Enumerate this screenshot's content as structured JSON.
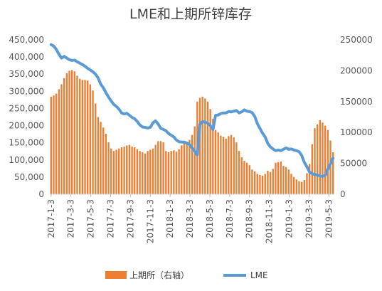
{
  "chart_data": {
    "type": "bar",
    "title": "LME和上期所锌库存",
    "legend": {
      "position": "bottom"
    },
    "grid": false,
    "x_tick_labels": [
      "2017-1-3",
      "2017-3-3",
      "2017-5-3",
      "2017-7-3",
      "2017-9-3",
      "2017-11-3",
      "2018-1-3",
      "2018-3-3",
      "2018-5-3",
      "2018-7-3",
      "2018-9-3",
      "2018-11-3",
      "2019-1-3",
      "2019-3-3",
      "2019-5-3"
    ],
    "y_left": {
      "range": [
        0,
        450000
      ],
      "ticks": [
        "0",
        "50,000",
        "100,000",
        "150,000",
        "200,000",
        "250,000",
        "300,000",
        "350,000",
        "400,000",
        "450,000"
      ]
    },
    "y_right": {
      "range": [
        0,
        250000
      ],
      "ticks": [
        "0",
        "50000",
        "100000",
        "150000",
        "200000",
        "250000"
      ]
    },
    "series": [
      {
        "name": "上期所（右轴）",
        "type": "bar",
        "axis": "right",
        "color": "#ED7D31",
        "values": [
          158000,
          160000,
          163000,
          170000,
          178000,
          188000,
          196000,
          200000,
          201000,
          199000,
          192000,
          187000,
          185000,
          185000,
          184000,
          178000,
          168000,
          147000,
          125000,
          117000,
          108000,
          98000,
          84000,
          74000,
          70000,
          72000,
          74000,
          76000,
          77000,
          79000,
          80000,
          77000,
          76000,
          73000,
          70000,
          68000,
          66000,
          70000,
          72000,
          74000,
          80000,
          86000,
          86000,
          84000,
          70000,
          68000,
          70000,
          71000,
          69000,
          73000,
          79000,
          83000,
          85000,
          88000,
          96000,
          110000,
          150000,
          156000,
          158000,
          155000,
          150000,
          138000,
          122000,
          104000,
          100000,
          95000,
          93000,
          90000,
          94000,
          96000,
          92000,
          84000,
          70000,
          60000,
          54000,
          51000,
          47000,
          40000,
          37000,
          33000,
          31000,
          30000,
          33000,
          38000,
          36000,
          41000,
          51000,
          52000,
          53000,
          46000,
          44000,
          40000,
          33000,
          28000,
          24000,
          21000,
          20000,
          23000,
          34000,
          49000,
          81000,
          107000,
          113000,
          120000,
          116000,
          111000,
          104000,
          87000,
          68000
        ]
      },
      {
        "name": "LME",
        "type": "line",
        "axis": "left",
        "color": "#5B9BD5",
        "values": [
          436000,
          432000,
          422000,
          408000,
          397000,
          402000,
          397000,
          392000,
          390000,
          391000,
          386000,
          382000,
          378000,
          373000,
          367000,
          362000,
          357000,
          350000,
          339000,
          321000,
          310000,
          296000,
          283000,
          272000,
          262000,
          256000,
          248000,
          237000,
          234000,
          236000,
          230000,
          224000,
          220000,
          212000,
          202000,
          196000,
          195000,
          193000,
          195000,
          208000,
          214000,
          205000,
          192000,
          189000,
          185000,
          177000,
          172000,
          167000,
          158000,
          153000,
          152000,
          152000,
          149000,
          145000,
          135000,
          125000,
          114000,
          204000,
          212000,
          210000,
          207000,
          200000,
          188000,
          230000,
          231000,
          235000,
          237000,
          237000,
          241000,
          240000,
          242000,
          244000,
          237000,
          240000,
          246000,
          242000,
          241000,
          238000,
          227000,
          206000,
          192000,
          178000,
          167000,
          148000,
          138000,
          132000,
          127000,
          129000,
          127000,
          131000,
          135000,
          131000,
          132000,
          129000,
          127000,
          124000,
          113000,
          93000,
          80000,
          65000,
          60000,
          57000,
          56000,
          53000,
          52000,
          55000,
          73000,
          88000,
          105000
        ]
      }
    ]
  }
}
